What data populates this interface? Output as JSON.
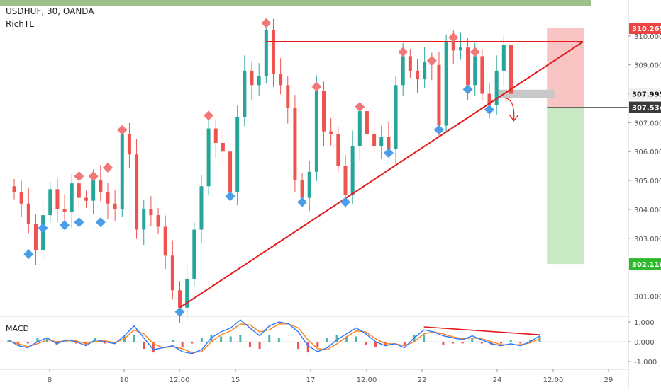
{
  "header": {
    "symbol_line": "USDHUF, 30, OANDA",
    "indicator_name": "RichTL",
    "macd_label": "MACD"
  },
  "colors": {
    "top_band": "#9dbf8c",
    "bull_candle": "#26a69a",
    "bear_candle": "#ef5350",
    "trendline": "#e31b1b",
    "stop_zone": "#f8c4c4",
    "target_zone": "#c9e9c5",
    "entry_band": "#c8c8c8",
    "pivot_high_marker": "#f07878",
    "pivot_low_marker": "#4a9ee8",
    "macd_line": "#2979ff",
    "signal_line": "#ff7f1a",
    "grid_label": "#555555"
  },
  "price_labels": {
    "top": "310.265",
    "current": "307.995",
    "entry": "307.534",
    "target": "302.110"
  },
  "chart_data": [
    {
      "type": "line",
      "title": "USDHUF, 30, OANDA",
      "x_ticks": [
        "8",
        "10",
        "12:00",
        "15",
        "17",
        "12:00",
        "22",
        "24",
        "12:00",
        "29"
      ],
      "y_ticks": [
        "301.000",
        "302.000",
        "303.000",
        "304.000",
        "305.000",
        "306.000",
        "307.000",
        "308.000",
        "309.000",
        "310.000"
      ],
      "ylim": [
        300.35,
        311.0
      ],
      "series": [
        {
          "name": "USDHUF",
          "values": [
            304.6,
            304.2,
            303.5,
            302.6,
            303.8,
            304.7,
            304.0,
            303.9,
            304.9,
            304.4,
            304.3,
            305.0,
            304.6,
            304.2,
            304.0,
            306.6,
            305.9,
            303.3,
            304.0,
            303.8,
            303.4,
            302.4,
            301.2,
            300.6,
            301.6,
            303.3,
            304.8,
            306.8,
            306.3,
            306.0,
            304.6,
            307.2,
            308.8,
            308.3,
            308.6,
            310.2,
            308.7,
            308.3,
            307.5,
            305.0,
            304.4,
            305.3,
            308.1,
            306.7,
            306.6,
            305.5,
            304.5,
            306.2,
            307.4,
            306.6,
            306.2,
            306.5,
            306.1,
            308.3,
            309.3,
            308.8,
            308.5,
            309.1,
            309.0,
            306.9,
            309.8,
            309.5,
            309.6,
            308.3,
            309.3,
            308.0,
            307.6,
            308.8,
            309.7,
            308.0
          ]
        }
      ],
      "pivot_highs": [
        {
          "x_index": 9,
          "y": 305.0
        },
        {
          "x_index": 11,
          "y": 305.0
        },
        {
          "x_index": 13,
          "y": 305.3
        },
        {
          "x_index": 15,
          "y": 306.6
        },
        {
          "x_index": 27,
          "y": 307.1
        },
        {
          "x_index": 35,
          "y": 310.3
        },
        {
          "x_index": 42,
          "y": 308.1
        },
        {
          "x_index": 48,
          "y": 307.4
        },
        {
          "x_index": 54,
          "y": 309.3
        },
        {
          "x_index": 58,
          "y": 309.0
        },
        {
          "x_index": 61,
          "y": 309.8
        },
        {
          "x_index": 64,
          "y": 309.3
        }
      ],
      "pivot_lows": [
        {
          "x_index": 2,
          "y": 302.6
        },
        {
          "x_index": 4,
          "y": 303.5
        },
        {
          "x_index": 7,
          "y": 303.6
        },
        {
          "x_index": 9,
          "y": 303.7
        },
        {
          "x_index": 12,
          "y": 303.7
        },
        {
          "x_index": 23,
          "y": 300.6
        },
        {
          "x_index": 30,
          "y": 304.6
        },
        {
          "x_index": 40,
          "y": 304.4
        },
        {
          "x_index": 46,
          "y": 304.4
        },
        {
          "x_index": 52,
          "y": 306.1
        },
        {
          "x_index": 59,
          "y": 306.9
        },
        {
          "x_index": 63,
          "y": 308.3
        },
        {
          "x_index": 66,
          "y": 307.6
        }
      ],
      "trendlines": [
        {
          "name": "resistance",
          "points": [
            [
              35,
              309.8
            ],
            [
              79,
              309.8
            ]
          ]
        },
        {
          "name": "support",
          "points": [
            [
              23,
              300.6
            ],
            [
              79,
              309.8
            ]
          ]
        }
      ],
      "risk_reward": {
        "entry": 307.534,
        "stop": 310.265,
        "target": 302.11,
        "current_price": 307.995
      }
    },
    {
      "type": "line",
      "title": "MACD",
      "y_ticks": [
        "1.000",
        "0.000",
        "-1.000"
      ],
      "ylim": [
        -1.25,
        1.25
      ],
      "series": [
        {
          "name": "MACD",
          "values": [
            0.1,
            -0.2,
            -0.3,
            0.0,
            0.2,
            -0.1,
            0.1,
            0.0,
            -0.2,
            0.1,
            0.0,
            -0.1,
            0.3,
            0.8,
            0.2,
            -0.4,
            -0.3,
            -0.2,
            -0.5,
            -0.6,
            -0.4,
            0.2,
            0.5,
            0.7,
            1.1,
            0.7,
            0.3,
            0.8,
            1.0,
            0.9,
            0.5,
            -0.2,
            -0.5,
            -0.3,
            0.1,
            0.4,
            0.7,
            0.4,
            0.0,
            -0.2,
            -0.1,
            -0.3,
            0.2,
            0.6,
            0.5,
            0.3,
            0.2,
            0.1,
            0.3,
            0.1,
            -0.1,
            -0.2,
            -0.1,
            -0.2,
            0.0,
            0.3
          ]
        },
        {
          "name": "Signal",
          "values": [
            0.05,
            -0.1,
            -0.25,
            -0.1,
            0.1,
            0.0,
            0.05,
            0.05,
            -0.1,
            0.0,
            0.05,
            -0.05,
            0.15,
            0.6,
            0.4,
            -0.1,
            -0.3,
            -0.25,
            -0.35,
            -0.55,
            -0.5,
            0.0,
            0.35,
            0.55,
            0.9,
            0.85,
            0.5,
            0.6,
            0.9,
            0.9,
            0.7,
            0.1,
            -0.35,
            -0.4,
            -0.1,
            0.25,
            0.55,
            0.5,
            0.15,
            -0.1,
            -0.1,
            -0.2,
            0.0,
            0.4,
            0.5,
            0.4,
            0.25,
            0.15,
            0.2,
            0.15,
            0.0,
            -0.15,
            -0.15,
            -0.15,
            -0.05,
            0.15
          ]
        }
      ],
      "divergence_line": {
        "from": [
          43,
          0.75
        ],
        "to": [
          55,
          0.35
        ]
      }
    }
  ]
}
